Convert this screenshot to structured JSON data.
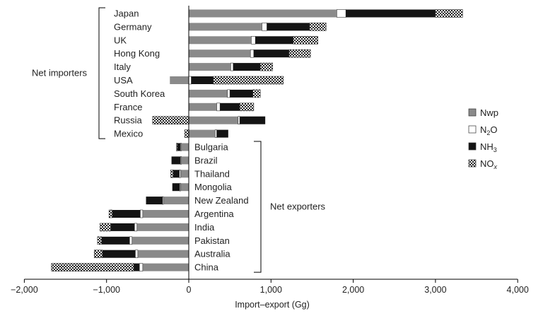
{
  "chart_data": {
    "type": "bar",
    "orientation": "horizontal",
    "stacked": true,
    "xlabel": "Import–export (Gg)",
    "xlim": [
      -2000,
      4000
    ],
    "xticks": [
      -2000,
      -1000,
      0,
      1000,
      2000,
      3000,
      4000
    ],
    "xtick_labels": [
      "−2,000",
      "−1,000",
      "0",
      "1,000",
      "2,000",
      "3,000",
      "4,000"
    ],
    "legend_position": "right",
    "series": [
      {
        "key": "nwp",
        "name": "Nwp",
        "color": "#8a8a8a",
        "pattern": "solid"
      },
      {
        "key": "n2o",
        "name": "N2O",
        "color": "#ffffff",
        "pattern": "outline"
      },
      {
        "key": "nh3",
        "name": "NH3",
        "color": "#141414",
        "pattern": "solid"
      },
      {
        "key": "nox",
        "name": "NOx",
        "color": "#ffffff",
        "pattern": "dotted"
      }
    ],
    "legend_labels": [
      {
        "main": "Nwp",
        "sub": ""
      },
      {
        "main": "N",
        "sub": "2",
        "tail": "O"
      },
      {
        "main": "NH",
        "sub": "3"
      },
      {
        "main": "NO",
        "sub": "x"
      }
    ],
    "groups": [
      {
        "label": "Net importers",
        "from": 0,
        "to": 9
      },
      {
        "label": "Net exporters",
        "from": 10,
        "to": 19
      }
    ],
    "countries": [
      {
        "name": "Japan",
        "values": {
          "nwp": 1800,
          "n2o": 110,
          "nh3": 1090,
          "nox": 330
        }
      },
      {
        "name": "Germany",
        "values": {
          "nwp": 890,
          "n2o": 60,
          "nh3": 520,
          "nox": 200
        }
      },
      {
        "name": "UK",
        "values": {
          "nwp": 760,
          "n2o": 50,
          "nh3": 460,
          "nox": 300
        }
      },
      {
        "name": "Hong Kong",
        "values": {
          "nwp": 750,
          "n2o": 40,
          "nh3": 430,
          "nox": 260
        }
      },
      {
        "name": "Italy",
        "values": {
          "nwp": 510,
          "n2o": 30,
          "nh3": 330,
          "nox": 150
        }
      },
      {
        "name": "USA",
        "values": {
          "nwp": -230,
          "n2o": 30,
          "nh3": 270,
          "nox": 850
        }
      },
      {
        "name": "South Korea",
        "values": {
          "nwp": 470,
          "n2o": 30,
          "nh3": 280,
          "nox": 90
        }
      },
      {
        "name": "France",
        "values": {
          "nwp": 340,
          "n2o": 40,
          "nh3": 240,
          "nox": 170
        }
      },
      {
        "name": "Russia",
        "values": {
          "nwp": 600,
          "n2o": 20,
          "nh3": 310,
          "nox": -440
        }
      },
      {
        "name": "Mexico",
        "values": {
          "nwp": 320,
          "n2o": 20,
          "nh3": 140,
          "nox": -50
        }
      },
      {
        "name": "Bulgaria",
        "values": {
          "nwp": -90,
          "n2o": -10,
          "nh3": -40,
          "nox": -10
        }
      },
      {
        "name": "Brazil",
        "values": {
          "nwp": -90,
          "n2o": -10,
          "nh3": -110,
          "nox": 0
        }
      },
      {
        "name": "Thailand",
        "values": {
          "nwp": -100,
          "n2o": -15,
          "nh3": -75,
          "nox": -30
        }
      },
      {
        "name": "Mongolia",
        "values": {
          "nwp": -100,
          "n2o": -10,
          "nh3": -90,
          "nox": 0
        }
      },
      {
        "name": "New Zealand",
        "values": {
          "nwp": -310,
          "n2o": -10,
          "nh3": -200,
          "nox": 0
        }
      },
      {
        "name": "Argentina",
        "values": {
          "nwp": -560,
          "n2o": -30,
          "nh3": -340,
          "nox": -40
        }
      },
      {
        "name": "India",
        "values": {
          "nwp": -630,
          "n2o": -30,
          "nh3": -290,
          "nox": -130
        }
      },
      {
        "name": "Pakistan",
        "values": {
          "nwp": -690,
          "n2o": -30,
          "nh3": -340,
          "nox": -50
        }
      },
      {
        "name": "Australia",
        "values": {
          "nwp": -620,
          "n2o": -30,
          "nh3": -400,
          "nox": -100
        }
      },
      {
        "name": "China",
        "values": {
          "nwp": -560,
          "n2o": -40,
          "nh3": -70,
          "nox": -1000
        }
      }
    ]
  }
}
